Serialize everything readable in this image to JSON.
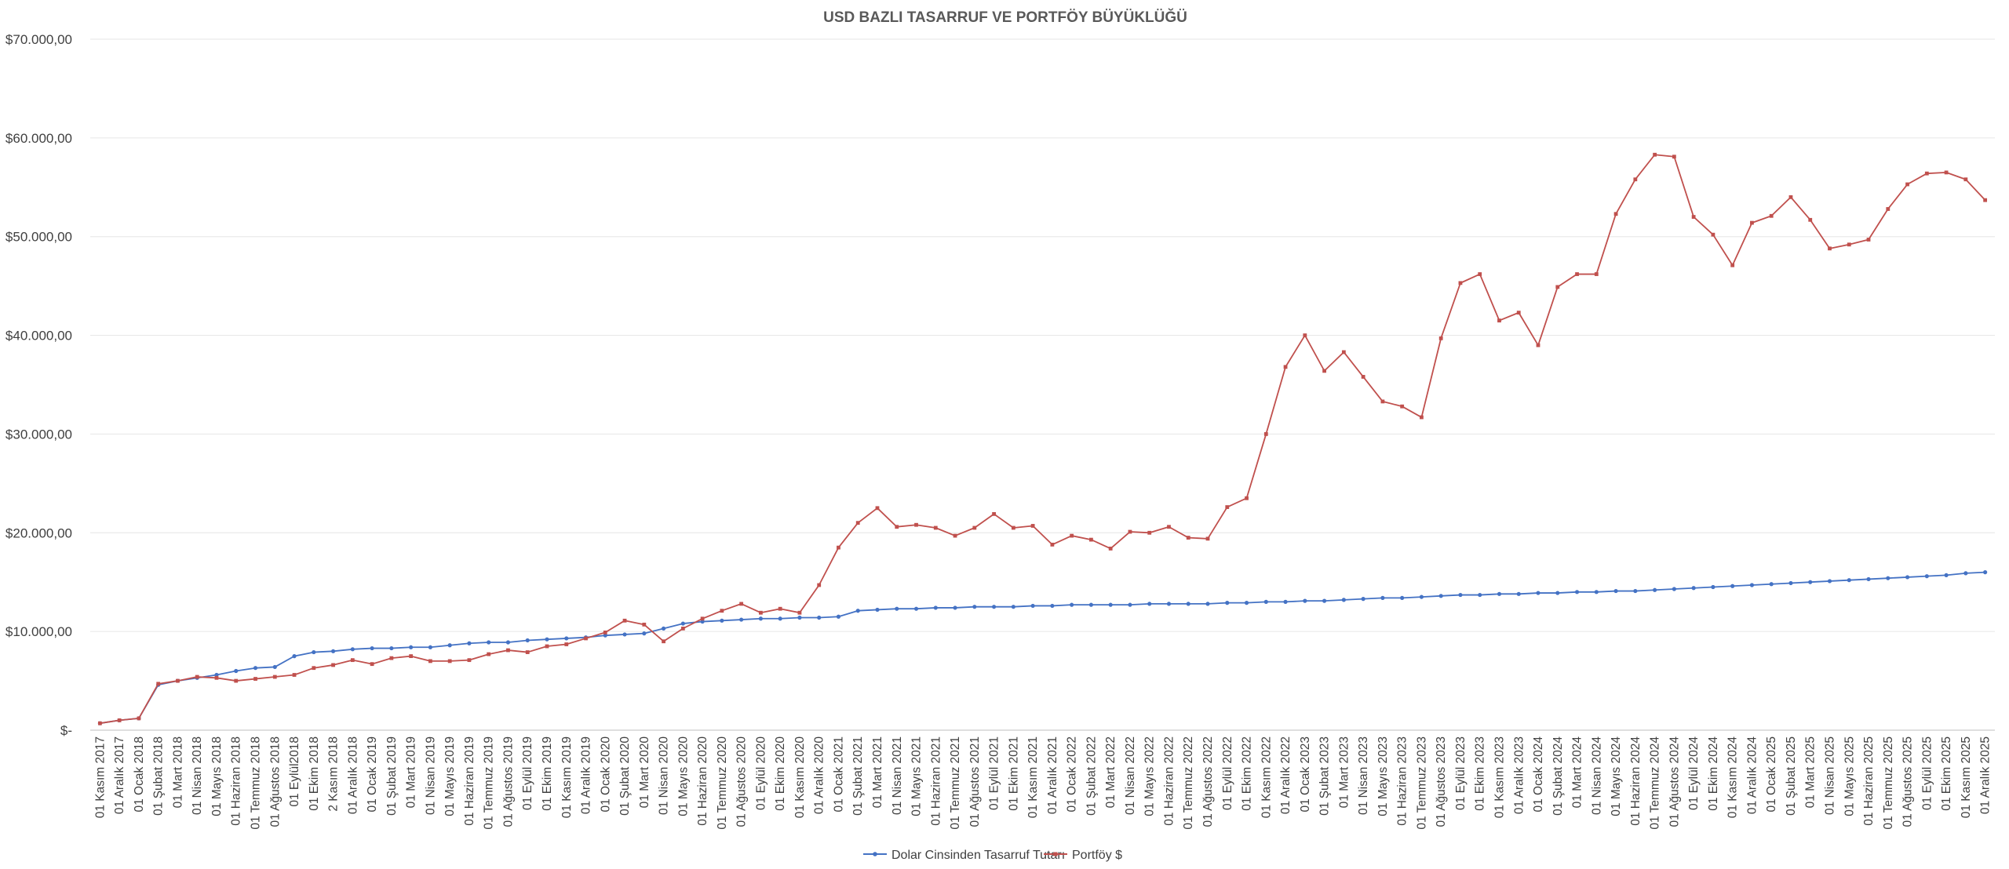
{
  "chart_data": {
    "type": "line",
    "title": "USD BAZLI TASARRUF VE PORTFÖY BÜYÜKLÜĞÜ",
    "xlabel": "",
    "ylabel": "",
    "ylim": [
      0,
      70000
    ],
    "yticks": [
      0,
      10000,
      20000,
      30000,
      40000,
      50000,
      60000,
      70000
    ],
    "ytick_labels": [
      "$-",
      "$10.000,00",
      "$20.000,00",
      "$30.000,00",
      "$40.000,00",
      "$50.000,00",
      "$60.000,00",
      "$70.000,00"
    ],
    "grid": true,
    "legend_position": "bottom",
    "categories": [
      "01 Kasım 2017",
      "01 Aralık 2017",
      "01 Ocak 2018",
      "01 Şubat 2018",
      "01 Mart 2018",
      "01 Nisan 2018",
      "01 Mayıs 2018",
      "01 Haziran 2018",
      "01 Temmuz 2018",
      "01 Ağustos 2018",
      "01 Eylül2018",
      "01 Ekim 2018",
      "2 Kasım 2018",
      "01 Aralık 2018",
      "01 Ocak 2019",
      "01 Şubat 2019",
      "01 Mart 2019",
      "01 Nisan 2019",
      "01 Mayıs 2019",
      "01 Haziran 2019",
      "01 Temmuz 2019",
      "01 Ağustos 2019",
      "01 Eylül 2019",
      "01 Ekim 2019",
      "01 Kasım 2019",
      "01 Aralık 2019",
      "01 Ocak 2020",
      "01 Şubat 2020",
      "01 Mart 2020",
      "01 Nisan 2020",
      "01 Mayıs 2020",
      "01 Haziran 2020",
      "01 Temmuz 2020",
      "01 Ağustos 2020",
      "01 Eylül 2020",
      "01 Ekim 2020",
      "01 Kasım 2020",
      "01 Aralık 2020",
      "01 Ocak 2021",
      "01 Şubat 2021",
      "01 Mart 2021",
      "01 Nisan 2021",
      "01 Mayıs 2021",
      "01 Haziran 2021",
      "01 Temmuz 2021",
      "01 Ağustos 2021",
      "01 Eylül 2021",
      "01 Ekim 2021",
      "01 Kasım 2021",
      "01 Aralık 2021",
      "01 Ocak 2022",
      "01 Şubat 2022",
      "01 Mart 2022",
      "01 Nisan 2022",
      "01 Mayıs 2022",
      "01 Haziran 2022",
      "01 Temmuz 2022",
      "01 Ağustos 2022",
      "01 Eylül 2022",
      "01 Ekim 2022",
      "01 Kasım 2022",
      "01 Aralık 2022",
      "01 Ocak 2023",
      "01 Şubat 2023",
      "01 Mart 2023",
      "01 Nisan 2023",
      "01 Mayıs 2023",
      "01 Haziran 2023",
      "01 Temmuz 2023",
      "01 Ağustos 2023",
      "01 Eylül 2023",
      "01 Ekim 2023",
      "01 Kasım 2023",
      "01 Aralık 2023",
      "01 Ocak 2024",
      "01 Şubat 2024",
      "01 Mart 2024",
      "01 Nisan 2024",
      "01 Mayıs 2024",
      "01 Haziran 2024",
      "01 Temmuz 2024",
      "01 Ağustos 2024",
      "01 Eylül 2024",
      "01 Ekim 2024",
      "01 Kasım 2024",
      "01 Aralık 2024",
      "01 Ocak 2025",
      "01 Şubat 2025",
      "01 Mart 2025",
      "01 Nisan 2025",
      "01 Mayıs 2025",
      "01 Haziran 2025",
      "01 Temmuz 2025",
      "01 Ağustos 2025",
      "01 Eylül 2025",
      "01 Ekim 2025",
      "01 Kasım 2025",
      "01 Aralık 2025"
    ],
    "series": [
      {
        "name": "Dolar Cinsinden Tasarruf Tutarı",
        "color": "#4472c4",
        "values": [
          700,
          1000,
          1200,
          4600,
          5000,
          5300,
          5600,
          6000,
          6300,
          6400,
          7500,
          7900,
          8000,
          8200,
          8300,
          8300,
          8400,
          8400,
          8600,
          8800,
          8900,
          8900,
          9100,
          9200,
          9300,
          9400,
          9600,
          9700,
          9800,
          10300,
          10800,
          11000,
          11100,
          11200,
          11300,
          11300,
          11400,
          11400,
          11500,
          12100,
          12200,
          12300,
          12300,
          12400,
          12400,
          12500,
          12500,
          12500,
          12600,
          12600,
          12700,
          12700,
          12700,
          12700,
          12800,
          12800,
          12800,
          12800,
          12900,
          12900,
          13000,
          13000,
          13100,
          13100,
          13200,
          13300,
          13400,
          13400,
          13500,
          13600,
          13700,
          13700,
          13800,
          13800,
          13900,
          13900,
          14000,
          14000,
          14100,
          14100,
          14200,
          14300,
          14400,
          14500,
          14600,
          14700,
          14800,
          14900,
          15000,
          15100,
          15200,
          15300,
          15400,
          15500,
          15600,
          15700,
          15900,
          16000
        ]
      },
      {
        "name": "Portföy $",
        "color": "#c0504d",
        "values": [
          700,
          1000,
          1200,
          4700,
          5000,
          5400,
          5300,
          5000,
          5200,
          5400,
          5600,
          6300,
          6600,
          7100,
          6700,
          7300,
          7500,
          7000,
          7000,
          7100,
          7700,
          8100,
          7900,
          8500,
          8700,
          9300,
          9900,
          11100,
          10700,
          9000,
          10300,
          11300,
          12100,
          12800,
          11900,
          12300,
          11900,
          14700,
          18500,
          21000,
          22500,
          20600,
          20800,
          20500,
          19700,
          20500,
          21900,
          20500,
          20700,
          18800,
          19700,
          19300,
          18400,
          20100,
          20000,
          20600,
          19500,
          19400,
          22600,
          23500,
          30000,
          36800,
          40000,
          36400,
          38300,
          35800,
          33300,
          32800,
          31700,
          39700,
          45300,
          46200,
          41500,
          42300,
          39000,
          44900,
          46200,
          46200,
          52300,
          55800,
          58300,
          58100,
          52000,
          50200,
          47100,
          51400,
          52100,
          54000,
          51700,
          48800,
          49200,
          49700,
          52800,
          55300,
          56400,
          56500,
          55800,
          53700
        ]
      }
    ]
  }
}
